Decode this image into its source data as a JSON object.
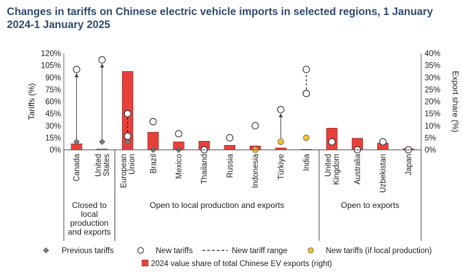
{
  "title": "Changes in tariffs on Chinese electric vehicle imports in selected regions, 1 January 2024-1 January 2025",
  "chart_data": {
    "type": "bar",
    "title": "Changes in tariffs on Chinese electric vehicle imports in selected regions, 1 January 2024-1 January 2025",
    "ylabel": "Tariffs (%)",
    "y2label": "Export share (%)",
    "ylim": [
      0,
      120
    ],
    "y2lim": [
      0,
      40
    ],
    "yticks": [
      "0%",
      "15%",
      "30%",
      "45%",
      "60%",
      "75%",
      "90%",
      "105%",
      "120%"
    ],
    "y2ticks": [
      "0%",
      "5%",
      "10%",
      "15%",
      "20%",
      "25%",
      "30%",
      "35%",
      "40%"
    ],
    "categories": [
      "Canada",
      "United States",
      "European Union",
      "Brazil",
      "Mexico",
      "Thailand",
      "Russia",
      "Indonesia",
      "Türkiye",
      "India",
      "United Kingdom",
      "Australia",
      "Uzbekistan",
      "Japan"
    ],
    "category_labels": [
      [
        "Canada"
      ],
      [
        "United",
        "States"
      ],
      [
        "European",
        "Union"
      ],
      [
        "Brazil"
      ],
      [
        "Mexico"
      ],
      [
        "Thailand"
      ],
      [
        "Russia"
      ],
      [
        "Indonesia"
      ],
      [
        "Türkiye"
      ],
      [
        "India"
      ],
      [
        "United",
        "Kingdom"
      ],
      [
        "Australia"
      ],
      [
        "Uzbekistan"
      ],
      [
        "Japan"
      ]
    ],
    "groups": [
      {
        "label_lines": [
          "Closed to",
          "local",
          "production",
          "and exports"
        ],
        "start": 0,
        "end": 1
      },
      {
        "label_lines": [
          "Open to local production and exports"
        ],
        "start": 2,
        "end": 9
      },
      {
        "label_lines": [
          "Open to exports"
        ],
        "start": 10,
        "end": 13
      }
    ],
    "series": [
      {
        "name": "2024 value share of total Chinese EV exports (right)",
        "kind": "bar",
        "axis": "right",
        "color": "#e8413c",
        "values": [
          2.5,
          0.3,
          32.5,
          7.3,
          3.3,
          3.6,
          1.9,
          1.6,
          0.8,
          0.2,
          9.0,
          4.8,
          2.8,
          0.5
        ]
      },
      {
        "name": "Previous tariffs",
        "kind": "marker",
        "axis": "left",
        "color": "#7f7f7f",
        "values": [
          10,
          10,
          10,
          0,
          0,
          null,
          null,
          null,
          null,
          null,
          null,
          null,
          null,
          null
        ]
      },
      {
        "name": "New tariffs",
        "kind": "marker",
        "axis": "left",
        "color": "#ffffff",
        "values": [
          100,
          112,
          17,
          35,
          20,
          0,
          15,
          30,
          50,
          70,
          10,
          0,
          10,
          0
        ]
      },
      {
        "name": "New tariff range",
        "kind": "range",
        "axis": "left",
        "values": [
          null,
          null,
          [
            17,
            45
          ],
          null,
          null,
          null,
          null,
          null,
          null,
          [
            70,
            100
          ],
          null,
          null,
          null,
          null
        ]
      },
      {
        "name": "New tariffs (if local production)",
        "kind": "marker",
        "axis": "left",
        "color": "#f2c029",
        "values": [
          null,
          null,
          null,
          null,
          null,
          null,
          null,
          0,
          10,
          15,
          null,
          null,
          null,
          null
        ]
      }
    ],
    "arrows": [
      {
        "category": "Canada",
        "from": 10,
        "to": 100
      },
      {
        "category": "United States",
        "from": 10,
        "to": 112
      },
      {
        "category": "Türkiye",
        "from": 10,
        "to": 50
      }
    ],
    "legend": {
      "placement": "bottom",
      "items": [
        "Previous tariffs",
        "New tariffs",
        "New tariff range",
        "New tariffs (if local production)",
        "2024 value share of total Chinese EV exports (right)"
      ]
    }
  }
}
